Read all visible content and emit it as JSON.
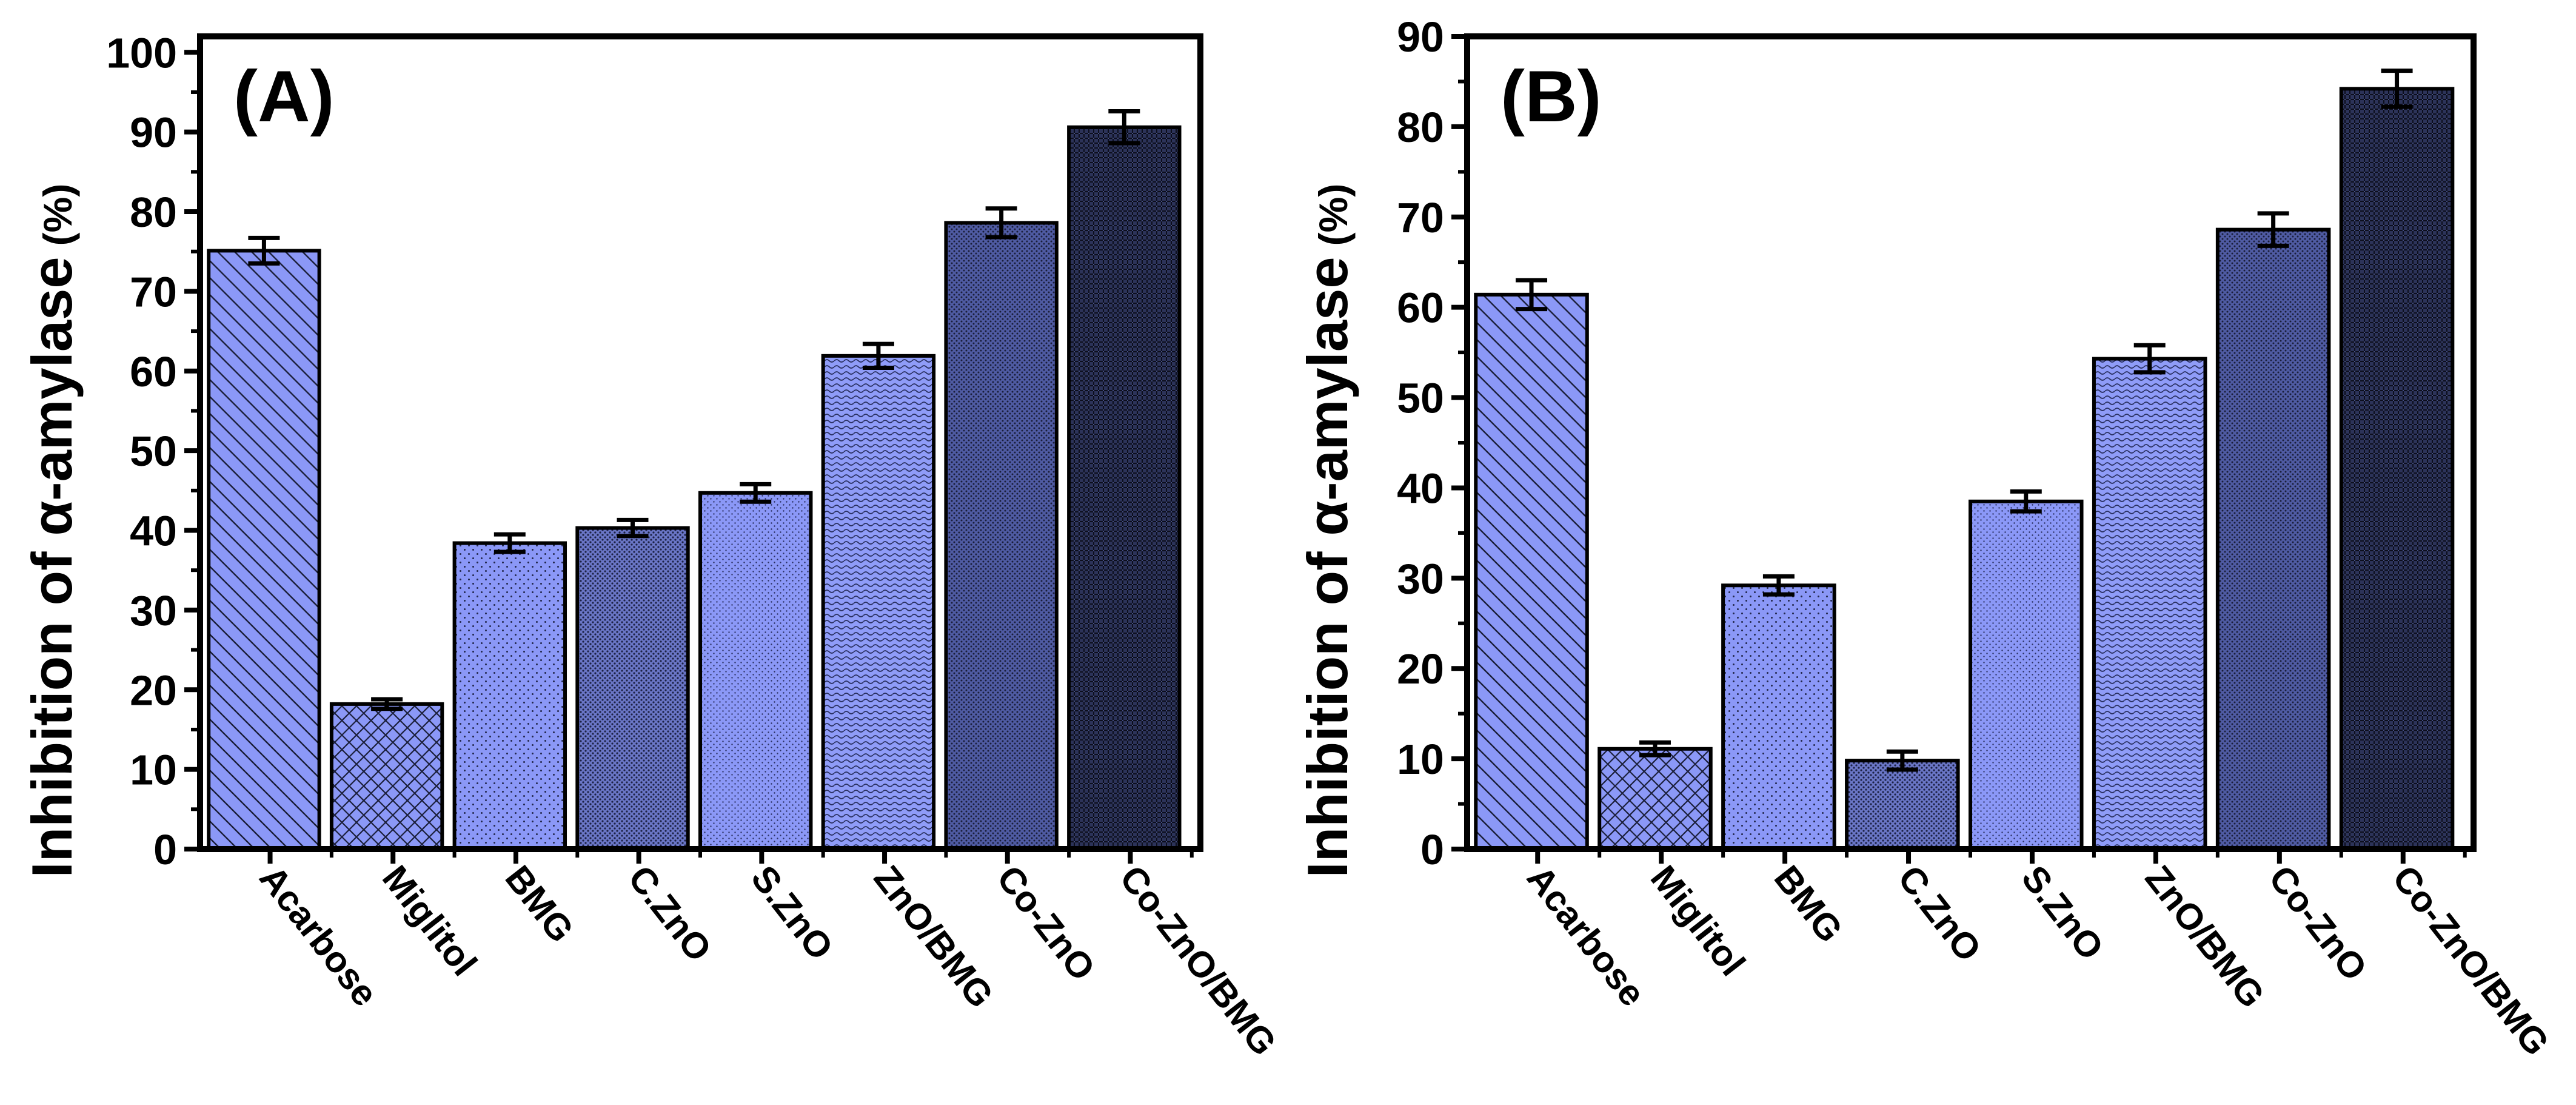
{
  "chart_data": [
    {
      "type": "bar",
      "panel_label": "(A)",
      "title": "",
      "xlabel": "",
      "ylabel": "Inhibition of α-amylase",
      "ylabel_unit": "(%)",
      "ylim": [
        0,
        102
      ],
      "yticks": [
        0,
        10,
        20,
        30,
        40,
        50,
        60,
        70,
        80,
        90,
        100
      ],
      "categories": [
        "Acarbose",
        "Miglitol",
        "BMG",
        "C.ZnO",
        "S.ZnO",
        "ZnO/BMG",
        "Co-ZnO",
        "Co-ZnO/BMG"
      ],
      "values": [
        75.1,
        18.2,
        38.4,
        40.3,
        44.7,
        61.9,
        78.6,
        90.6
      ],
      "errors": [
        1.6,
        0.6,
        1.1,
        1.0,
        1.1,
        1.5,
        1.8,
        2.0
      ],
      "grid": false,
      "legend": "none"
    },
    {
      "type": "bar",
      "panel_label": "(B)",
      "title": "",
      "xlabel": "",
      "ylabel": "Inhibition of α-amylase",
      "ylabel_unit": "(%)",
      "ylim": [
        0,
        90
      ],
      "yticks": [
        0,
        10,
        20,
        30,
        40,
        50,
        60,
        70,
        80,
        90
      ],
      "categories": [
        "Acarbose",
        "Miglitol",
        "BMG",
        "C.ZnO",
        "S.ZnO",
        "ZnO/BMG",
        "Co-ZnO",
        "Co-ZnO/BMG"
      ],
      "values": [
        61.4,
        11.1,
        29.2,
        9.8,
        38.5,
        54.3,
        68.6,
        84.2
      ],
      "errors": [
        1.6,
        0.7,
        1.0,
        1.0,
        1.1,
        1.5,
        1.8,
        2.0
      ],
      "grid": false,
      "legend": "none"
    }
  ],
  "bar_colors": [
    "#8b98f7",
    "#8b98f7",
    "#8b98f7",
    "#5a66b3",
    "#8b98f7",
    "#8592f0",
    "#4a5598",
    "#222842"
  ],
  "bar_patterns": [
    "diag-down",
    "crosshatch",
    "dots-sparse",
    "dots-dense",
    "dots-fine",
    "waves",
    "dots-dark",
    "weave-dark"
  ],
  "colors": {
    "axis": "#000000",
    "bar_outline": "#000000",
    "background": "#ffffff"
  }
}
